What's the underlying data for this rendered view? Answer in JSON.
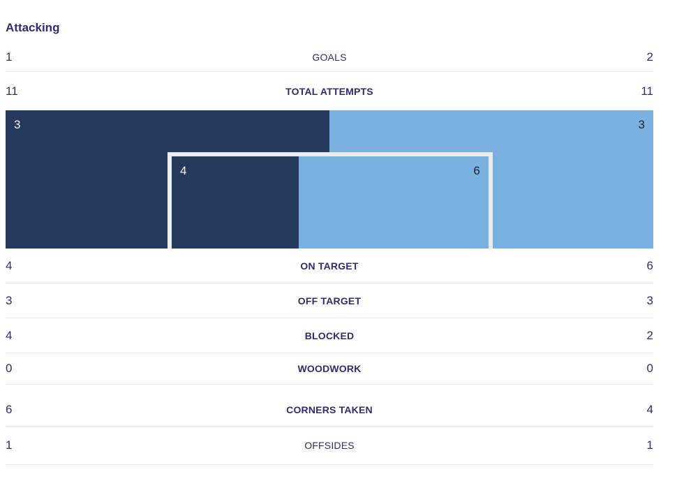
{
  "header": {
    "title": "Attacking"
  },
  "teams": {
    "home_side": "left",
    "away_side": "right"
  },
  "colors": {
    "home_fill": "#25395c",
    "away_fill": "#7ab1e0",
    "goal_frame": "#ececec",
    "chart_label_on_dark": "#f4f4f6",
    "chart_label_on_light": "#1c2030",
    "title_text": "#322b72",
    "stat_text": "#2d2e6f",
    "separator": "#e9e9e9"
  },
  "stats": [
    {
      "label": "GOALS",
      "home": "1",
      "away": "2"
    },
    {
      "label": "TOTAL ATTEMPTS",
      "home": "11",
      "away": "11"
    },
    {
      "label": "ON TARGET",
      "home": "4",
      "away": "6"
    },
    {
      "label": "OFF TARGET",
      "home": "3",
      "away": "3"
    },
    {
      "label": "BLOCKED",
      "home": "4",
      "away": "2"
    },
    {
      "label": "WOODWORK",
      "home": "0",
      "away": "0"
    },
    {
      "label": "CORNERS TAKEN",
      "home": "6",
      "away": "4"
    },
    {
      "label": "OFFSIDES",
      "home": "1",
      "away": "1"
    }
  ],
  "shot_chart": {
    "outer": {
      "home": 3,
      "away": 3
    },
    "goal": {
      "home": 4,
      "away": 6
    }
  },
  "chart_data": [
    {
      "type": "table",
      "title": "Attacking",
      "categories": [
        "GOALS",
        "TOTAL ATTEMPTS",
        "ON TARGET",
        "OFF TARGET",
        "BLOCKED",
        "WOODWORK",
        "CORNERS TAKEN",
        "OFFSIDES"
      ],
      "series": [
        {
          "name": "home (left, dark navy)",
          "values": [
            1,
            11,
            4,
            3,
            4,
            0,
            6,
            1
          ]
        },
        {
          "name": "away (right, light blue)",
          "values": [
            2,
            11,
            6,
            3,
            2,
            0,
            4,
            1
          ]
        }
      ],
      "legend_position": "none",
      "grid": false
    },
    {
      "type": "bar",
      "title": "Goal-mouth shot placement (nested proportional bars)",
      "categories": [
        "outer area / off target",
        "goal frame / on target"
      ],
      "series": [
        {
          "name": "home (dark navy)",
          "values": [
            3,
            4
          ]
        },
        {
          "name": "away (light blue)",
          "values": [
            3,
            6
          ]
        }
      ],
      "layout": "outer full-width band split 50/50; inner white goal frame split 40/60",
      "grid": false
    }
  ]
}
